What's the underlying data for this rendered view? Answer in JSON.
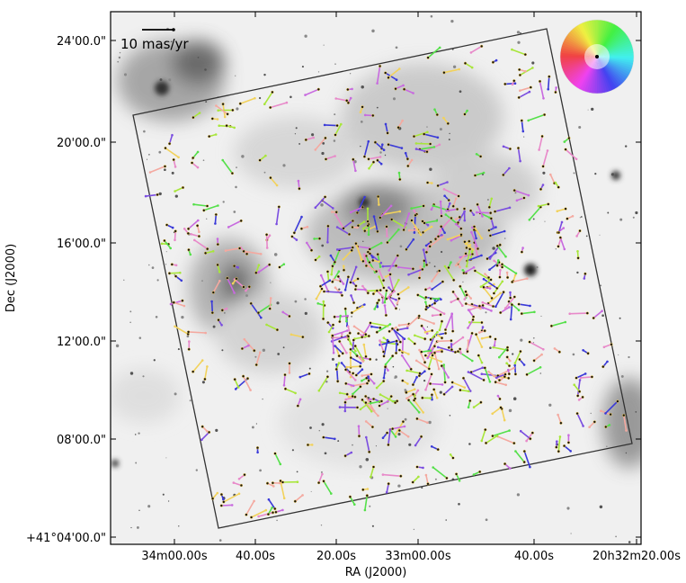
{
  "chart_data": {
    "type": "scatter",
    "xlabel": "RA (J2000)",
    "ylabel": "Dec (J2000)",
    "x_ticks": [
      "34m00.00s",
      "40.00s",
      "20.00s",
      "33m00.00s",
      "40.00s",
      "20h32m20.00s"
    ],
    "y_ticks": [
      "24'00.0\"",
      "20'00.0\"",
      "16'00.0\"",
      "12'00.0\"",
      "08'00.0\"",
      "+41°04'00.0\""
    ],
    "scale_bar_label": "10 mas/yr",
    "scale_bar_value_mas_per_yr": 10,
    "grid": false,
    "legend": "color wheel (top-right) encodes proper-motion direction",
    "colors": {
      "frame": "#222222",
      "background": "#ffffff",
      "vector_palette": [
        "#3a3ad8",
        "#7a4de0",
        "#c86adf",
        "#e889c9",
        "#f4a9a0",
        "#f2d25c",
        "#a8e63a",
        "#55e04a"
      ]
    }
  }
}
